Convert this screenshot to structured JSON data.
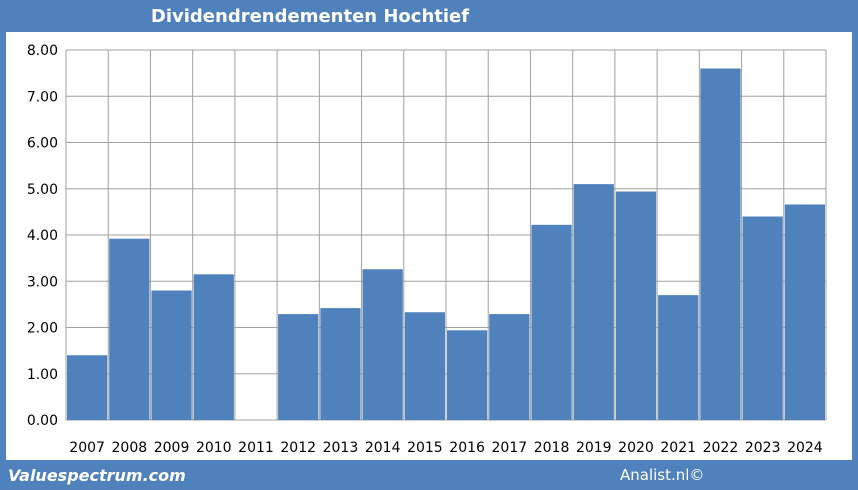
{
  "header": {
    "title": "Dividendrendementen Hochtief"
  },
  "footer": {
    "left": "Valuespectrum.com",
    "right": "Analist.nl©"
  },
  "chart_data": {
    "type": "bar",
    "title": "Dividendrendementen Hochtief",
    "xlabel": "",
    "ylabel": "",
    "categories": [
      "2007",
      "2008",
      "2009",
      "2010",
      "2011",
      "2012",
      "2013",
      "2014",
      "2015",
      "2016",
      "2017",
      "2018",
      "2019",
      "2020",
      "2021",
      "2022",
      "2023",
      "2024"
    ],
    "values": [
      1.4,
      3.92,
      2.8,
      3.15,
      0.0,
      2.29,
      2.42,
      3.26,
      2.33,
      1.94,
      2.29,
      4.22,
      5.1,
      4.94,
      2.7,
      7.6,
      4.4,
      4.66
    ],
    "ylim": [
      0,
      8
    ],
    "yticks": [
      "0.00",
      "1.00",
      "2.00",
      "3.00",
      "4.00",
      "5.00",
      "6.00",
      "7.00",
      "8.00"
    ],
    "grid": true,
    "colors": {
      "bar": "#4f81bd",
      "grid": "#a0a0a0",
      "background": "#4f81bd"
    }
  }
}
